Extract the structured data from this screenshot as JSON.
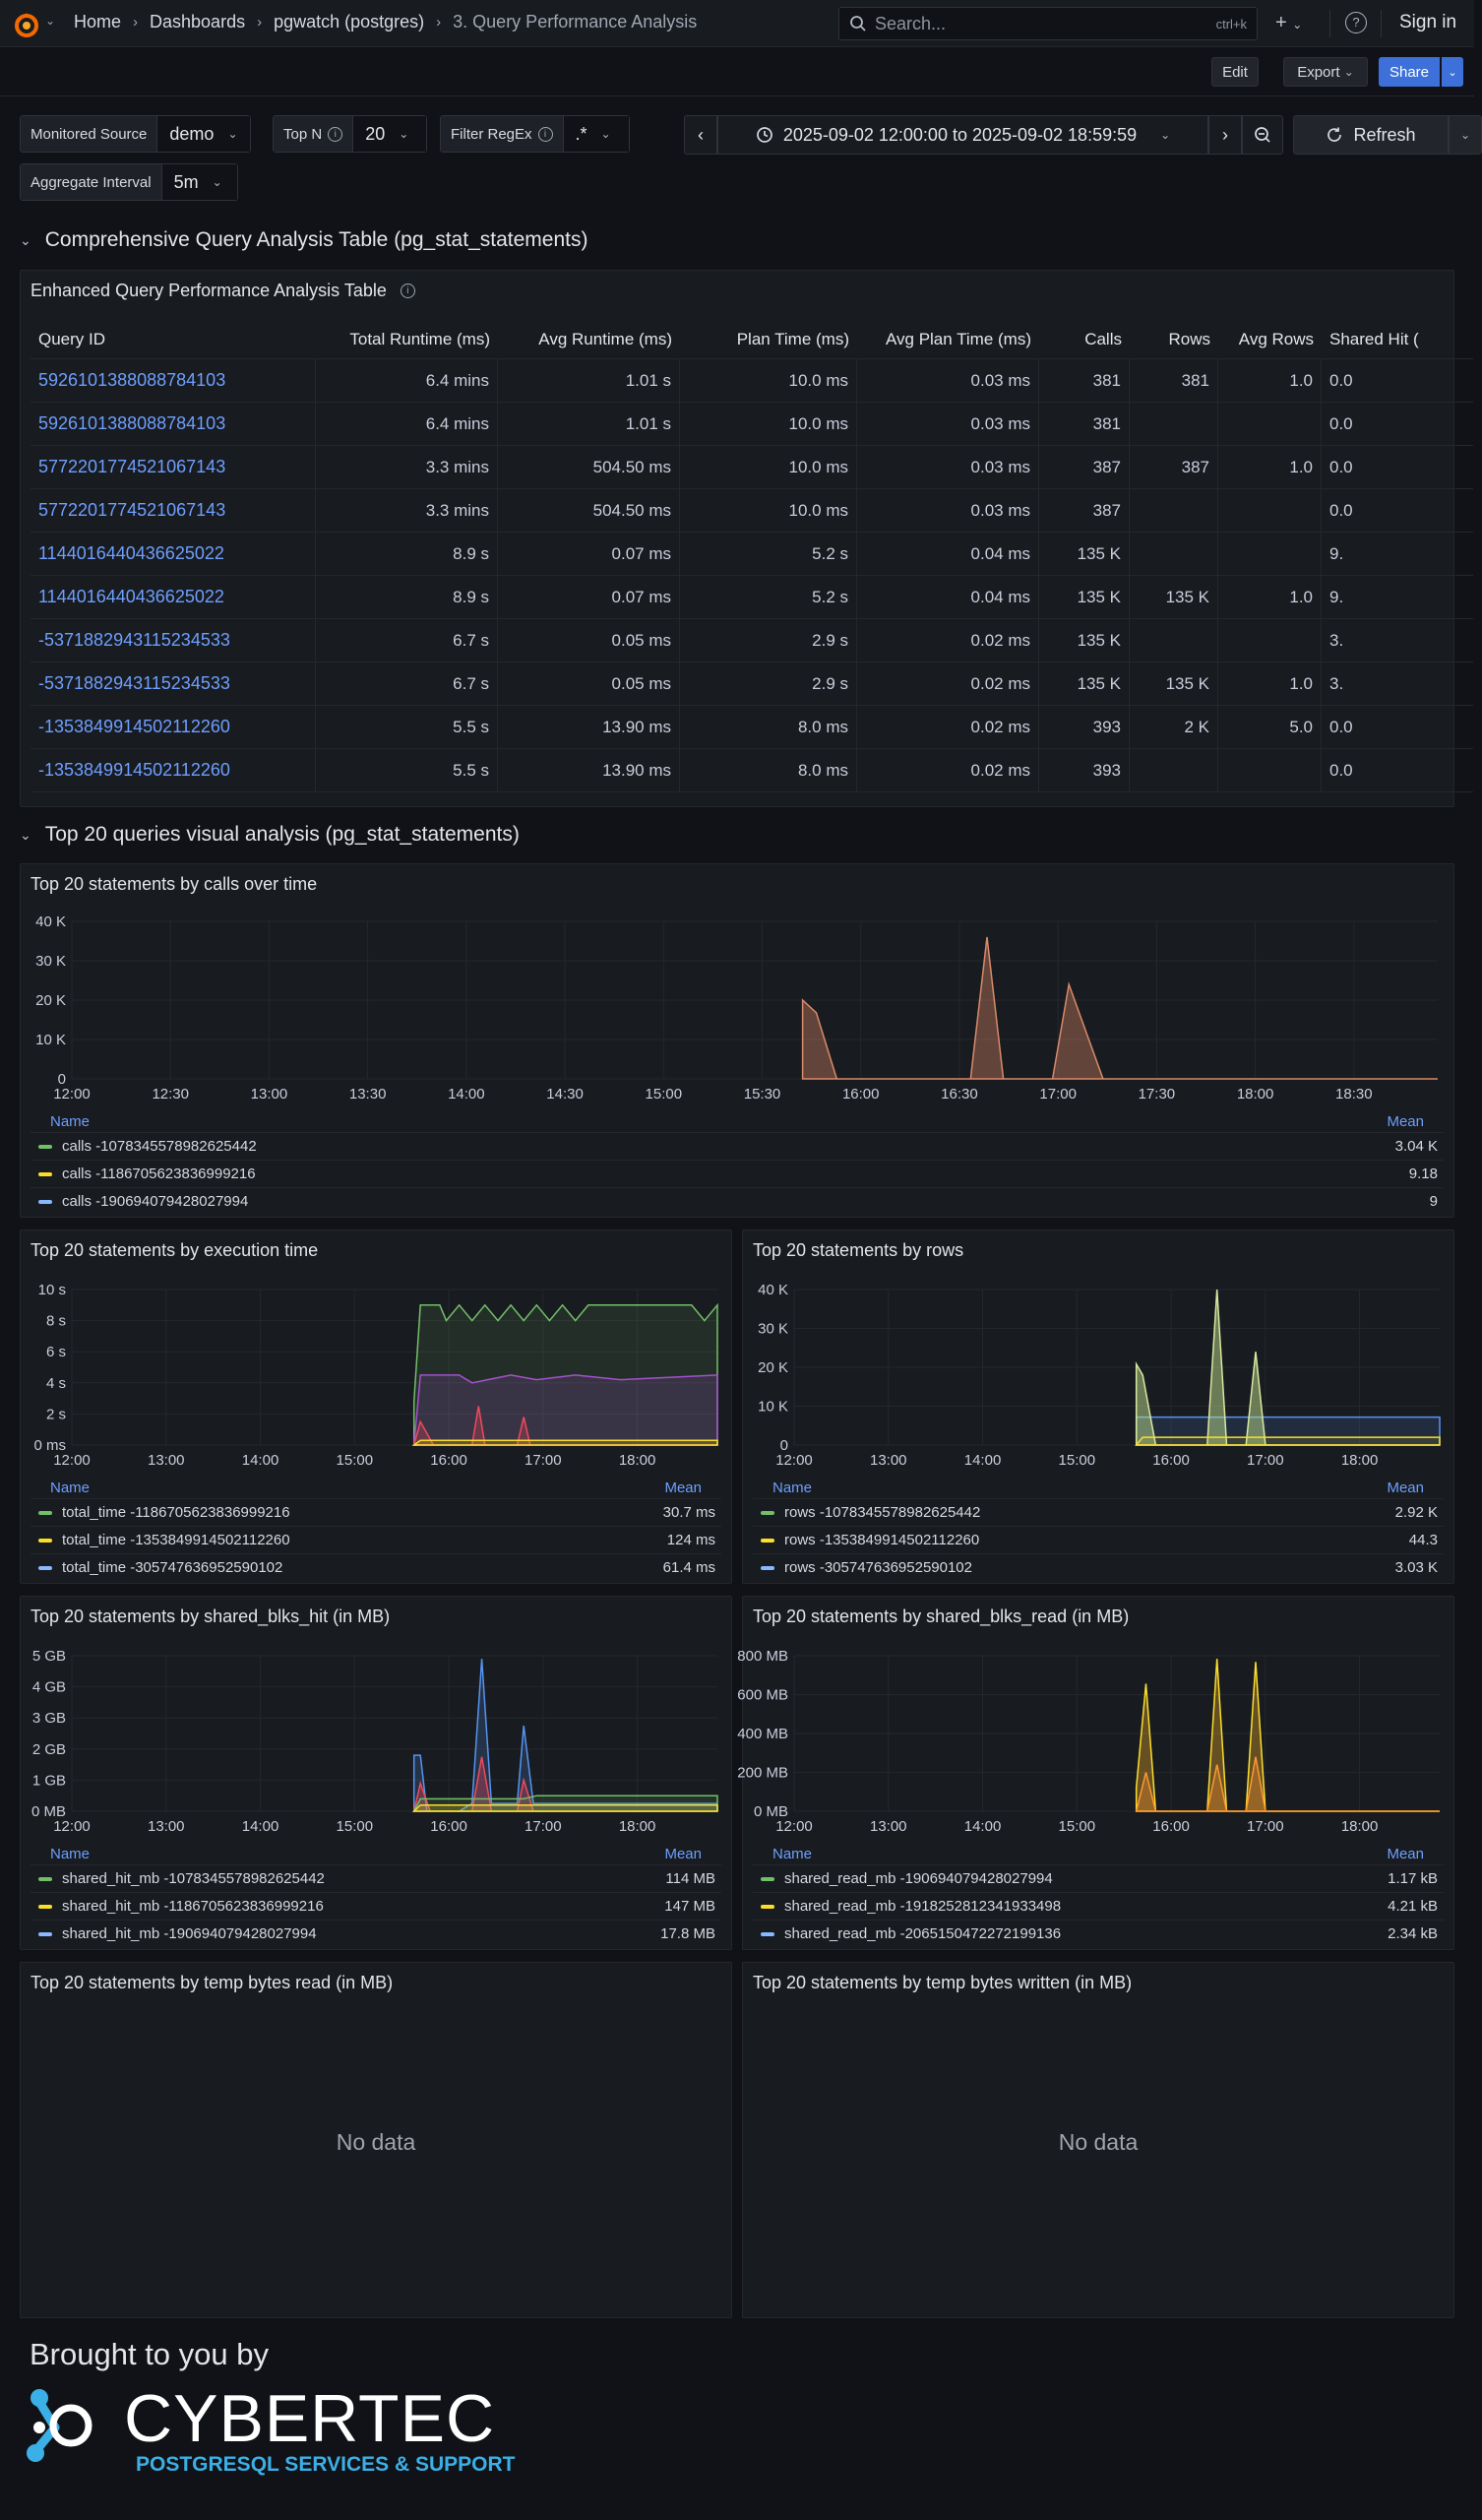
{
  "nav": {
    "breadcrumbs": [
      "Home",
      "Dashboards",
      "pgwatch (postgres)"
    ],
    "current": "3. Query Performance Analysis",
    "search_placeholder": "Search...",
    "search_kbd": "ctrl+k",
    "signin": "Sign in"
  },
  "toolbar": {
    "edit": "Edit",
    "export": "Export",
    "share": "Share"
  },
  "variables": {
    "monitored_source": {
      "label": "Monitored Source",
      "value": "demo"
    },
    "top_n": {
      "label": "Top N",
      "value": "20"
    },
    "filter_regex": {
      "label": "Filter RegEx",
      "value": ".*"
    },
    "aggregate_interval": {
      "label": "Aggregate Interval",
      "value": "5m"
    }
  },
  "time_range": {
    "text": "2025-09-02 12:00:00 to 2025-09-02 18:59:59",
    "refresh": "Refresh"
  },
  "sections": {
    "table_section": "Comprehensive Query Analysis Table (pg_stat_statements)",
    "visual_section": "Top 20 queries visual analysis (pg_stat_statements)"
  },
  "table": {
    "title": "Enhanced Query Performance Analysis Table",
    "columns": [
      "Query ID",
      "Total Runtime (ms)",
      "Avg Runtime (ms)",
      "Plan Time (ms)",
      "Avg Plan Time (ms)",
      "Calls",
      "Rows",
      "Avg Rows",
      "Shared Hit ("
    ],
    "rows": [
      [
        "5926101388088784103",
        "6.4 mins",
        "1.01 s",
        "10.0 ms",
        "0.03 ms",
        "381",
        "381",
        "1.0",
        "0.0"
      ],
      [
        "5926101388088784103",
        "6.4 mins",
        "1.01 s",
        "10.0 ms",
        "0.03 ms",
        "381",
        "",
        "",
        "0.0"
      ],
      [
        "5772201774521067143",
        "3.3 mins",
        "504.50 ms",
        "10.0 ms",
        "0.03 ms",
        "387",
        "387",
        "1.0",
        "0.0"
      ],
      [
        "5772201774521067143",
        "3.3 mins",
        "504.50 ms",
        "10.0 ms",
        "0.03 ms",
        "387",
        "",
        "",
        "0.0"
      ],
      [
        "1144016440436625022",
        "8.9 s",
        "0.07 ms",
        "5.2 s",
        "0.04 ms",
        "135 K",
        "",
        "",
        "9."
      ],
      [
        "1144016440436625022",
        "8.9 s",
        "0.07 ms",
        "5.2 s",
        "0.04 ms",
        "135 K",
        "135 K",
        "1.0",
        "9."
      ],
      [
        "-5371882943115234533",
        "6.7 s",
        "0.05 ms",
        "2.9 s",
        "0.02 ms",
        "135 K",
        "",
        "",
        "3."
      ],
      [
        "-5371882943115234533",
        "6.7 s",
        "0.05 ms",
        "2.9 s",
        "0.02 ms",
        "135 K",
        "135 K",
        "1.0",
        "3."
      ],
      [
        "-1353849914502112260",
        "5.5 s",
        "13.90 ms",
        "8.0 ms",
        "0.02 ms",
        "393",
        "2 K",
        "5.0",
        "0.0"
      ],
      [
        "-1353849914502112260",
        "5.5 s",
        "13.90 ms",
        "8.0 ms",
        "0.02 ms",
        "393",
        "",
        "",
        "0.0"
      ]
    ]
  },
  "legend_headers": {
    "name": "Name",
    "mean": "Mean"
  },
  "no_data": "No data",
  "footer": {
    "brought": "Brought to you by",
    "brand": "CYBERTEC",
    "tagline": "POSTGRESQL SERVICES & SUPPORT"
  },
  "colors": {
    "green": "#73bf69",
    "yellow": "#fade2a",
    "blue": "#8ab8ff",
    "accent": "#3d71d9",
    "link": "#6e9fff"
  },
  "chart_data": [
    {
      "id": "calls",
      "type": "area",
      "title": "Top 20 statements by calls over time",
      "x_ticks": [
        "12:00",
        "12:30",
        "13:00",
        "13:30",
        "14:00",
        "14:30",
        "15:00",
        "15:30",
        "16:00",
        "16:30",
        "17:00",
        "17:30",
        "18:00",
        "18:30"
      ],
      "y_ticks": [
        "0",
        "10 K",
        "20 K",
        "30 K",
        "40 K"
      ],
      "ylim": [
        0,
        40000
      ],
      "series": [
        {
          "name": "calls -1078345578982625442",
          "mean": "3.04 K",
          "color": "#73bf69"
        },
        {
          "name": "calls -1186705623836999216",
          "mean": "9.18",
          "color": "#fade2a"
        },
        {
          "name": "calls -190694079428027994",
          "mean": "9",
          "color": "#8ab8ff"
        }
      ]
    },
    {
      "id": "exec",
      "type": "area",
      "title": "Top 20 statements by execution time",
      "x_ticks": [
        "12:00",
        "13:00",
        "14:00",
        "15:00",
        "16:00",
        "17:00",
        "18:00"
      ],
      "y_ticks": [
        "0 ms",
        "2 s",
        "4 s",
        "6 s",
        "8 s",
        "10 s"
      ],
      "ylim": [
        0,
        10
      ],
      "series": [
        {
          "name": "total_time -1186705623836999216",
          "mean": "30.7 ms",
          "color": "#73bf69"
        },
        {
          "name": "total_time -1353849914502112260",
          "mean": "124 ms",
          "color": "#fade2a"
        },
        {
          "name": "total_time -305747636952590102",
          "mean": "61.4 ms",
          "color": "#8ab8ff"
        }
      ]
    },
    {
      "id": "rows",
      "type": "area",
      "title": "Top 20 statements by rows",
      "x_ticks": [
        "12:00",
        "13:00",
        "14:00",
        "15:00",
        "16:00",
        "17:00",
        "18:00"
      ],
      "y_ticks": [
        "0",
        "10 K",
        "20 K",
        "30 K",
        "40 K"
      ],
      "ylim": [
        0,
        40000
      ],
      "series": [
        {
          "name": "rows -1078345578982625442",
          "mean": "2.92 K",
          "color": "#73bf69"
        },
        {
          "name": "rows -1353849914502112260",
          "mean": "44.3",
          "color": "#fade2a"
        },
        {
          "name": "rows -305747636952590102",
          "mean": "3.03 K",
          "color": "#8ab8ff"
        }
      ]
    },
    {
      "id": "hit",
      "type": "area",
      "title": "Top 20 statements by shared_blks_hit (in MB)",
      "x_ticks": [
        "12:00",
        "13:00",
        "14:00",
        "15:00",
        "16:00",
        "17:00",
        "18:00"
      ],
      "y_ticks": [
        "0 MB",
        "1 GB",
        "2 GB",
        "3 GB",
        "4 GB",
        "5 GB"
      ],
      "ylim": [
        0,
        5
      ],
      "series": [
        {
          "name": "shared_hit_mb -1078345578982625442",
          "mean": "114 MB",
          "color": "#73bf69"
        },
        {
          "name": "shared_hit_mb -1186705623836999216",
          "mean": "147 MB",
          "color": "#fade2a"
        },
        {
          "name": "shared_hit_mb -190694079428027994",
          "mean": "17.8 MB",
          "color": "#8ab8ff"
        }
      ]
    },
    {
      "id": "read",
      "type": "area",
      "title": "Top 20 statements by shared_blks_read (in MB)",
      "x_ticks": [
        "12:00",
        "13:00",
        "14:00",
        "15:00",
        "16:00",
        "17:00",
        "18:00"
      ],
      "y_ticks": [
        "0 MB",
        "200 MB",
        "400 MB",
        "600 MB",
        "800 MB"
      ],
      "ylim": [
        0,
        800
      ],
      "series": [
        {
          "name": "shared_read_mb -190694079428027994",
          "mean": "1.17 kB",
          "color": "#73bf69"
        },
        {
          "name": "shared_read_mb -1918252812341933498",
          "mean": "4.21 kB",
          "color": "#fade2a"
        },
        {
          "name": "shared_read_mb -2065150472272199136",
          "mean": "2.34 kB",
          "color": "#8ab8ff"
        }
      ]
    },
    {
      "id": "tempread",
      "type": "line",
      "title": "Top 20 statements by temp bytes read (in MB)"
    },
    {
      "id": "tempwrite",
      "type": "line",
      "title": "Top 20 statements by temp bytes written (in MB)"
    }
  ]
}
